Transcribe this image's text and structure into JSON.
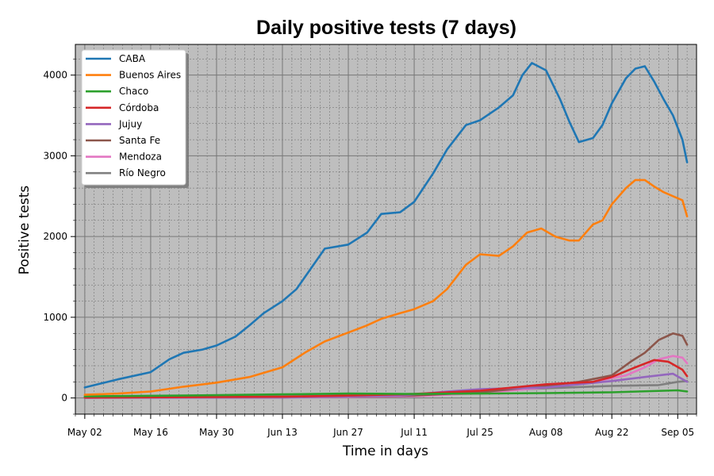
{
  "chart_data": {
    "type": "line",
    "title": "Daily positive tests (7 days)",
    "xlabel": "Time in days",
    "ylabel": "Positive tests",
    "x_start": "2020-05-02",
    "x_end": "2020-09-06",
    "xlim": [
      "2020-04-30",
      "2020-09-09"
    ],
    "ylim": [
      -200,
      4380
    ],
    "xticks": [
      {
        "date": "2020-05-02",
        "label": "May 02"
      },
      {
        "date": "2020-05-16",
        "label": "May 16"
      },
      {
        "date": "2020-05-30",
        "label": "May 30"
      },
      {
        "date": "2020-06-13",
        "label": "Jun 13"
      },
      {
        "date": "2020-06-27",
        "label": "Jun 27"
      },
      {
        "date": "2020-07-11",
        "label": "Jul 11"
      },
      {
        "date": "2020-07-25",
        "label": "Jul 25"
      },
      {
        "date": "2020-08-08",
        "label": "Aug 08"
      },
      {
        "date": "2020-08-22",
        "label": "Aug 22"
      },
      {
        "date": "2020-09-05",
        "label": "Sep 05"
      }
    ],
    "yticks": [
      0,
      1000,
      2000,
      3000,
      4000
    ],
    "grid": true,
    "legend_position": "top-left",
    "series": [
      {
        "name": "CABA",
        "color": "#1f77b4",
        "points": [
          [
            "2020-05-02",
            130
          ],
          [
            "2020-05-09",
            230
          ],
          [
            "2020-05-16",
            320
          ],
          [
            "2020-05-20",
            480
          ],
          [
            "2020-05-23",
            560
          ],
          [
            "2020-05-27",
            600
          ],
          [
            "2020-05-30",
            650
          ],
          [
            "2020-06-03",
            760
          ],
          [
            "2020-06-06",
            900
          ],
          [
            "2020-06-09",
            1050
          ],
          [
            "2020-06-13",
            1200
          ],
          [
            "2020-06-16",
            1350
          ],
          [
            "2020-06-19",
            1600
          ],
          [
            "2020-06-22",
            1850
          ],
          [
            "2020-06-27",
            1900
          ],
          [
            "2020-07-01",
            2050
          ],
          [
            "2020-07-04",
            2280
          ],
          [
            "2020-07-08",
            2300
          ],
          [
            "2020-07-11",
            2430
          ],
          [
            "2020-07-15",
            2780
          ],
          [
            "2020-07-18",
            3080
          ],
          [
            "2020-07-22",
            3380
          ],
          [
            "2020-07-25",
            3440
          ],
          [
            "2020-07-29",
            3600
          ],
          [
            "2020-08-01",
            3750
          ],
          [
            "2020-08-03",
            4000
          ],
          [
            "2020-08-05",
            4150
          ],
          [
            "2020-08-08",
            4060
          ],
          [
            "2020-08-11",
            3700
          ],
          [
            "2020-08-13",
            3420
          ],
          [
            "2020-08-15",
            3170
          ],
          [
            "2020-08-18",
            3220
          ],
          [
            "2020-08-20",
            3380
          ],
          [
            "2020-08-22",
            3650
          ],
          [
            "2020-08-25",
            3960
          ],
          [
            "2020-08-27",
            4080
          ],
          [
            "2020-08-29",
            4110
          ],
          [
            "2020-08-31",
            3920
          ],
          [
            "2020-09-02",
            3700
          ],
          [
            "2020-09-04",
            3500
          ],
          [
            "2020-09-06",
            3200
          ],
          [
            "2020-09-07",
            2920
          ]
        ]
      },
      {
        "name": "Buenos Aires",
        "color": "#ff7f0e",
        "points": [
          [
            "2020-05-02",
            40
          ],
          [
            "2020-05-09",
            55
          ],
          [
            "2020-05-16",
            80
          ],
          [
            "2020-05-23",
            140
          ],
          [
            "2020-05-30",
            190
          ],
          [
            "2020-06-06",
            260
          ],
          [
            "2020-06-13",
            380
          ],
          [
            "2020-06-18",
            570
          ],
          [
            "2020-06-22",
            700
          ],
          [
            "2020-06-27",
            810
          ],
          [
            "2020-07-01",
            900
          ],
          [
            "2020-07-04",
            980
          ],
          [
            "2020-07-08",
            1050
          ],
          [
            "2020-07-11",
            1100
          ],
          [
            "2020-07-15",
            1200
          ],
          [
            "2020-07-18",
            1350
          ],
          [
            "2020-07-22",
            1650
          ],
          [
            "2020-07-25",
            1780
          ],
          [
            "2020-07-29",
            1760
          ],
          [
            "2020-08-01",
            1880
          ],
          [
            "2020-08-04",
            2050
          ],
          [
            "2020-08-07",
            2100
          ],
          [
            "2020-08-10",
            2000
          ],
          [
            "2020-08-13",
            1950
          ],
          [
            "2020-08-15",
            1950
          ],
          [
            "2020-08-18",
            2150
          ],
          [
            "2020-08-20",
            2200
          ],
          [
            "2020-08-22",
            2400
          ],
          [
            "2020-08-25",
            2600
          ],
          [
            "2020-08-27",
            2700
          ],
          [
            "2020-08-29",
            2700
          ],
          [
            "2020-08-31",
            2620
          ],
          [
            "2020-09-02",
            2550
          ],
          [
            "2020-09-04",
            2500
          ],
          [
            "2020-09-06",
            2450
          ],
          [
            "2020-09-07",
            2250
          ]
        ]
      },
      {
        "name": "Chaco",
        "color": "#2ca02c",
        "points": [
          [
            "2020-05-02",
            20
          ],
          [
            "2020-05-23",
            30
          ],
          [
            "2020-06-13",
            45
          ],
          [
            "2020-06-27",
            55
          ],
          [
            "2020-07-11",
            50
          ],
          [
            "2020-07-25",
            55
          ],
          [
            "2020-08-08",
            60
          ],
          [
            "2020-08-22",
            70
          ],
          [
            "2020-09-05",
            95
          ],
          [
            "2020-09-07",
            80
          ]
        ]
      },
      {
        "name": "Córdoba",
        "color": "#d62728",
        "points": [
          [
            "2020-05-02",
            5
          ],
          [
            "2020-06-13",
            15
          ],
          [
            "2020-06-27",
            30
          ],
          [
            "2020-07-11",
            50
          ],
          [
            "2020-07-25",
            90
          ],
          [
            "2020-08-08",
            170
          ],
          [
            "2020-08-18",
            200
          ],
          [
            "2020-08-22",
            260
          ],
          [
            "2020-08-27",
            380
          ],
          [
            "2020-08-31",
            470
          ],
          [
            "2020-09-03",
            450
          ],
          [
            "2020-09-06",
            350
          ],
          [
            "2020-09-07",
            270
          ]
        ]
      },
      {
        "name": "Jujuy",
        "color": "#9467bd",
        "points": [
          [
            "2020-05-02",
            2
          ],
          [
            "2020-06-13",
            5
          ],
          [
            "2020-07-08",
            30
          ],
          [
            "2020-07-18",
            80
          ],
          [
            "2020-07-25",
            110
          ],
          [
            "2020-08-01",
            120
          ],
          [
            "2020-08-08",
            130
          ],
          [
            "2020-08-15",
            170
          ],
          [
            "2020-08-22",
            210
          ],
          [
            "2020-08-29",
            260
          ],
          [
            "2020-09-04",
            300
          ],
          [
            "2020-09-07",
            200
          ]
        ]
      },
      {
        "name": "Santa Fe",
        "color": "#8c564b",
        "points": [
          [
            "2020-05-02",
            3
          ],
          [
            "2020-06-13",
            8
          ],
          [
            "2020-07-11",
            30
          ],
          [
            "2020-07-25",
            70
          ],
          [
            "2020-08-08",
            150
          ],
          [
            "2020-08-15",
            200
          ],
          [
            "2020-08-22",
            280
          ],
          [
            "2020-08-26",
            450
          ],
          [
            "2020-08-29",
            560
          ],
          [
            "2020-09-01",
            720
          ],
          [
            "2020-09-04",
            800
          ],
          [
            "2020-09-06",
            770
          ],
          [
            "2020-09-07",
            660
          ]
        ]
      },
      {
        "name": "Mendoza",
        "color": "#e377c2",
        "points": [
          [
            "2020-05-02",
            2
          ],
          [
            "2020-06-13",
            6
          ],
          [
            "2020-07-11",
            20
          ],
          [
            "2020-07-25",
            60
          ],
          [
            "2020-08-08",
            130
          ],
          [
            "2020-08-18",
            200
          ],
          [
            "2020-08-25",
            280
          ],
          [
            "2020-08-29",
            380
          ],
          [
            "2020-09-01",
            480
          ],
          [
            "2020-09-04",
            520
          ],
          [
            "2020-09-06",
            500
          ],
          [
            "2020-09-07",
            430
          ]
        ]
      },
      {
        "name": "Río Negro",
        "color": "#7f7f7f",
        "points": [
          [
            "2020-05-02",
            5
          ],
          [
            "2020-06-13",
            20
          ],
          [
            "2020-07-11",
            40
          ],
          [
            "2020-07-25",
            80
          ],
          [
            "2020-08-08",
            120
          ],
          [
            "2020-08-22",
            150
          ],
          [
            "2020-09-01",
            160
          ],
          [
            "2020-09-05",
            200
          ],
          [
            "2020-09-07",
            210
          ]
        ]
      }
    ]
  }
}
